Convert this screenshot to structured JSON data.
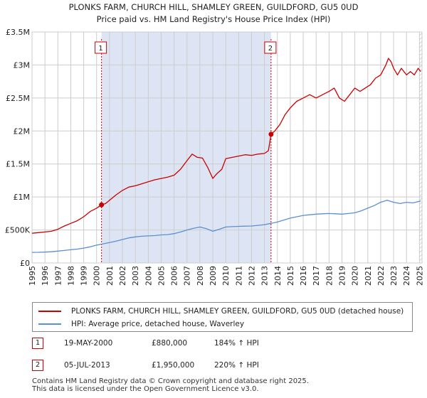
{
  "chart_data": {
    "type": "line",
    "title": "PLONKS FARM, CHURCH HILL, SHAMLEY GREEN, GUILDFORD, GU5 0UD",
    "subtitle": "Price paid vs. HM Land Registry's House Price Index (HPI)",
    "xlim": [
      1995,
      2025.2
    ],
    "ylim": [
      0,
      3500000
    ],
    "x_ticks": [
      "1995",
      "1996",
      "1997",
      "1998",
      "1999",
      "2000",
      "2001",
      "2002",
      "2003",
      "2004",
      "2005",
      "2006",
      "2007",
      "2008",
      "2009",
      "2010",
      "2011",
      "2012",
      "2013",
      "2014",
      "2015",
      "2016",
      "2017",
      "2018",
      "2019",
      "2020",
      "2021",
      "2022",
      "2023",
      "2024",
      "2025"
    ],
    "y_ticks": [
      {
        "value": 0,
        "label": "£0"
      },
      {
        "value": 500000,
        "label": "£500K"
      },
      {
        "value": 1000000,
        "label": "£1M"
      },
      {
        "value": 1500000,
        "label": "£1.5M"
      },
      {
        "value": 2000000,
        "label": "£2M"
      },
      {
        "value": 2500000,
        "label": "£2.5M"
      },
      {
        "value": 3000000,
        "label": "£3M"
      },
      {
        "value": 3500000,
        "label": "£3.5M"
      }
    ],
    "grid": true,
    "shaded_region": {
      "x_start": 2000.38,
      "x_end": 2013.51,
      "color": "#dde5f5"
    },
    "hatched_region": {
      "x_start": 2025.0,
      "x_end": 2025.2
    },
    "series": [
      {
        "name": "PLONKS FARM, CHURCH HILL, SHAMLEY GREEN, GUILDFORD, GU5 0UD (detached house)",
        "color": "#cc0000",
        "x": [
          1995.0,
          1995.5,
          1996.0,
          1996.5,
          1997.0,
          1997.5,
          1998.0,
          1998.5,
          1999.0,
          1999.5,
          2000.0,
          2000.38,
          2000.7,
          2001.0,
          2001.5,
          2002.0,
          2002.5,
          2003.0,
          2003.5,
          2004.0,
          2004.5,
          2005.0,
          2005.5,
          2006.0,
          2006.5,
          2007.0,
          2007.4,
          2007.8,
          2008.2,
          2008.6,
          2009.0,
          2009.3,
          2009.7,
          2010.0,
          2010.5,
          2011.0,
          2011.5,
          2012.0,
          2012.5,
          2013.0,
          2013.3,
          2013.51,
          2013.8,
          2014.2,
          2014.6,
          2015.0,
          2015.5,
          2016.0,
          2016.5,
          2017.0,
          2017.5,
          2018.0,
          2018.4,
          2018.8,
          2019.2,
          2019.6,
          2020.0,
          2020.4,
          2020.8,
          2021.2,
          2021.6,
          2022.0,
          2022.4,
          2022.6,
          2022.8,
          2023.0,
          2023.3,
          2023.6,
          2024.0,
          2024.3,
          2024.6,
          2024.9,
          2025.1
        ],
        "values": [
          450000,
          460000,
          470000,
          480000,
          510000,
          560000,
          600000,
          640000,
          700000,
          780000,
          830000,
          880000,
          900000,
          950000,
          1030000,
          1100000,
          1150000,
          1170000,
          1200000,
          1230000,
          1260000,
          1280000,
          1300000,
          1330000,
          1420000,
          1550000,
          1650000,
          1600000,
          1590000,
          1450000,
          1280000,
          1350000,
          1420000,
          1580000,
          1600000,
          1620000,
          1640000,
          1630000,
          1650000,
          1660000,
          1700000,
          1950000,
          2000000,
          2100000,
          2250000,
          2350000,
          2450000,
          2500000,
          2550000,
          2500000,
          2550000,
          2600000,
          2650000,
          2500000,
          2450000,
          2550000,
          2650000,
          2600000,
          2650000,
          2700000,
          2800000,
          2850000,
          3000000,
          3100000,
          3050000,
          2950000,
          2850000,
          2950000,
          2850000,
          2900000,
          2850000,
          2950000,
          2900000
        ]
      },
      {
        "name": "HPI: Average price, detached house, Waverley",
        "color": "#5b8fd0",
        "x": [
          1995.0,
          1995.5,
          1996.0,
          1996.5,
          1997.0,
          1997.5,
          1998.0,
          1998.5,
          1999.0,
          1999.5,
          2000.0,
          2000.5,
          2001.0,
          2001.5,
          2002.0,
          2002.5,
          2003.0,
          2003.5,
          2004.0,
          2004.5,
          2005.0,
          2005.5,
          2006.0,
          2006.5,
          2007.0,
          2007.5,
          2008.0,
          2008.5,
          2009.0,
          2009.5,
          2010.0,
          2010.5,
          2011.0,
          2011.5,
          2012.0,
          2012.5,
          2013.0,
          2013.5,
          2014.0,
          2014.5,
          2015.0,
          2015.5,
          2016.0,
          2016.5,
          2017.0,
          2017.5,
          2018.0,
          2018.5,
          2019.0,
          2019.5,
          2020.0,
          2020.5,
          2021.0,
          2021.5,
          2022.0,
          2022.5,
          2023.0,
          2023.5,
          2024.0,
          2024.5,
          2025.1
        ],
        "values": [
          160000,
          162000,
          165000,
          170000,
          180000,
          190000,
          200000,
          210000,
          225000,
          245000,
          270000,
          290000,
          310000,
          330000,
          355000,
          380000,
          395000,
          405000,
          410000,
          415000,
          425000,
          430000,
          445000,
          470000,
          500000,
          525000,
          545000,
          520000,
          480000,
          510000,
          545000,
          550000,
          555000,
          558000,
          560000,
          570000,
          580000,
          600000,
          620000,
          650000,
          680000,
          700000,
          720000,
          730000,
          740000,
          745000,
          750000,
          745000,
          740000,
          750000,
          760000,
          790000,
          830000,
          870000,
          920000,
          950000,
          920000,
          900000,
          920000,
          910000,
          940000
        ]
      }
    ],
    "sales": [
      {
        "id": "1",
        "x": 2000.38,
        "value": 880000,
        "date": "19-MAY-2000",
        "price": "£880,000",
        "hpi": "184% ↑ HPI"
      },
      {
        "id": "2",
        "x": 2013.51,
        "value": 1950000,
        "date": "05-JUL-2013",
        "price": "£1,950,000",
        "hpi": "220% ↑ HPI"
      }
    ]
  },
  "legend": {
    "property": "PLONKS FARM, CHURCH HILL, SHAMLEY GREEN, GUILDFORD, GU5 0UD (detached house)",
    "hpi": "HPI: Average price, detached house, Waverley"
  },
  "footer": {
    "line1": "Contains HM Land Registry data © Crown copyright and database right 2025.",
    "line2": "This data is licensed under the Open Government Licence v3.0."
  },
  "colors": {
    "property": "#cc0000",
    "hpi": "#5b8fd0",
    "grid": "#cccccc",
    "shade": "#dde5f5"
  }
}
